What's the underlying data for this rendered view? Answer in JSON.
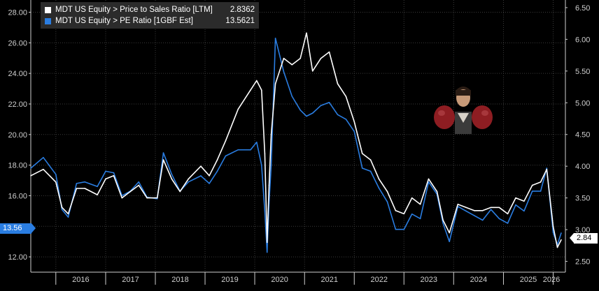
{
  "legend": {
    "items": [
      {
        "label": "MDT US Equity > Price to Sales Ratio [LTM]",
        "value": "2.8362",
        "color": "#ffffff"
      },
      {
        "label": "MDT US Equity > PE Ratio [1GBF Est]",
        "value": "13.5621",
        "color": "#2a7de1"
      }
    ]
  },
  "tags": {
    "left_value": "13.56",
    "right_value": "2.84"
  },
  "colors": {
    "background": "#000000",
    "grid": "#3a3a3a",
    "axis": "#cfcfcf",
    "pe_series": "#2a7de1",
    "ps_series": "#ffffff"
  },
  "chart_data": {
    "type": "line",
    "x_type": "date",
    "xlim": [
      "2015-07-01",
      "2026-04-01"
    ],
    "x_ticks": [
      "2016",
      "2017",
      "2018",
      "2019",
      "2020",
      "2021",
      "2022",
      "2023",
      "2024",
      "2025",
      "2026"
    ],
    "left_axis": {
      "series": "MDT US Equity > PE Ratio [1GBF Est]",
      "ylim": [
        11,
        28.8
      ],
      "ticks": [
        "12.00",
        "14.00",
        "16.00",
        "18.00",
        "20.00",
        "22.00",
        "24.00",
        "26.00",
        "28.00"
      ]
    },
    "right_axis": {
      "series": "MDT US Equity > Price to Sales Ratio [LTM]",
      "ylim": [
        2.33,
        6.62
      ],
      "ticks": [
        "2.50",
        "3.00",
        "3.50",
        "4.00",
        "4.50",
        "5.00",
        "5.50",
        "6.00",
        "6.50"
      ]
    },
    "grid": true,
    "legend_position": "top-left",
    "series": [
      {
        "name": "MDT US Equity > PE Ratio [1GBF Est]",
        "axis": "left",
        "color": "#2a7de1",
        "x": [
          "2015-07-01",
          "2015-10-01",
          "2016-01-01",
          "2016-02-15",
          "2016-04-01",
          "2016-06-01",
          "2016-08-01",
          "2016-11-01",
          "2017-01-01",
          "2017-03-01",
          "2017-05-01",
          "2017-07-01",
          "2017-09-01",
          "2017-11-01",
          "2018-01-15",
          "2018-03-01",
          "2018-05-01",
          "2018-07-01",
          "2018-09-01",
          "2018-12-01",
          "2019-02-01",
          "2019-04-01",
          "2019-06-01",
          "2019-09-01",
          "2019-12-01",
          "2020-01-15",
          "2020-02-20",
          "2020-03-15",
          "2020-04-01",
          "2020-04-15",
          "2020-05-01",
          "2020-06-01",
          "2020-08-01",
          "2020-10-01",
          "2020-12-01",
          "2021-01-15",
          "2021-03-01",
          "2021-05-01",
          "2021-07-01",
          "2021-09-01",
          "2021-11-01",
          "2022-01-01",
          "2022-03-01",
          "2022-05-01",
          "2022-07-01",
          "2022-09-01",
          "2022-11-01",
          "2023-01-01",
          "2023-03-01",
          "2023-05-01",
          "2023-07-01",
          "2023-09-01",
          "2023-10-15",
          "2023-12-01",
          "2024-02-01",
          "2024-04-01",
          "2024-06-01",
          "2024-08-01",
          "2024-10-01",
          "2024-12-01",
          "2025-02-01",
          "2025-04-01",
          "2025-06-01",
          "2025-08-01",
          "2025-10-01",
          "2025-11-15",
          "2026-01-01",
          "2026-02-01",
          "2026-03-01"
        ],
        "values": [
          17.8,
          18.5,
          17.4,
          15.1,
          14.6,
          16.8,
          16.9,
          16.6,
          17.6,
          17.5,
          16.0,
          16.3,
          16.9,
          15.9,
          15.8,
          18.8,
          17.4,
          16.3,
          16.9,
          17.3,
          16.8,
          17.6,
          18.6,
          19.0,
          19.0,
          19.5,
          18.0,
          15.0,
          12.3,
          15.5,
          18.0,
          26.3,
          24.1,
          22.5,
          21.6,
          21.2,
          21.4,
          21.9,
          22.1,
          21.3,
          21.0,
          20.2,
          17.8,
          17.6,
          16.5,
          15.6,
          13.8,
          13.8,
          14.8,
          14.5,
          16.9,
          16.1,
          14.2,
          13.0,
          15.3,
          15.0,
          14.7,
          14.4,
          15.1,
          14.5,
          14.2,
          15.4,
          15.0,
          16.3,
          16.3,
          17.8,
          13.6,
          12.8,
          13.56
        ]
      },
      {
        "name": "MDT US Equity > Price to Sales Ratio [LTM]",
        "axis": "right",
        "color": "#ffffff",
        "x": [
          "2015-07-01",
          "2015-10-01",
          "2016-01-01",
          "2016-02-15",
          "2016-04-01",
          "2016-06-01",
          "2016-08-01",
          "2016-11-01",
          "2017-01-01",
          "2017-03-01",
          "2017-05-01",
          "2017-07-01",
          "2017-09-01",
          "2017-11-01",
          "2018-01-15",
          "2018-03-01",
          "2018-05-01",
          "2018-07-01",
          "2018-09-01",
          "2018-12-01",
          "2019-02-01",
          "2019-04-01",
          "2019-06-01",
          "2019-09-01",
          "2019-12-01",
          "2020-01-15",
          "2020-02-20",
          "2020-03-15",
          "2020-04-01",
          "2020-04-15",
          "2020-05-01",
          "2020-06-01",
          "2020-08-01",
          "2020-10-01",
          "2020-12-01",
          "2021-01-15",
          "2021-03-01",
          "2021-05-01",
          "2021-07-01",
          "2021-09-01",
          "2021-11-01",
          "2022-01-01",
          "2022-03-01",
          "2022-05-01",
          "2022-07-01",
          "2022-09-01",
          "2022-11-01",
          "2023-01-01",
          "2023-03-01",
          "2023-05-01",
          "2023-07-01",
          "2023-09-01",
          "2023-10-15",
          "2023-12-01",
          "2024-02-01",
          "2024-04-01",
          "2024-06-01",
          "2024-08-01",
          "2024-10-01",
          "2024-12-01",
          "2025-02-01",
          "2025-04-01",
          "2025-06-01",
          "2025-08-01",
          "2025-10-01",
          "2025-11-15",
          "2026-01-01",
          "2026-02-01",
          "2026-03-01"
        ],
        "values": [
          3.85,
          3.95,
          3.75,
          3.35,
          3.25,
          3.65,
          3.65,
          3.55,
          3.8,
          3.85,
          3.5,
          3.6,
          3.7,
          3.5,
          3.5,
          4.1,
          3.8,
          3.6,
          3.8,
          4.0,
          3.85,
          4.1,
          4.4,
          4.9,
          5.2,
          5.35,
          5.2,
          4.2,
          2.8,
          3.7,
          4.5,
          5.3,
          5.7,
          5.6,
          5.7,
          6.1,
          5.5,
          5.7,
          5.8,
          5.3,
          5.1,
          4.7,
          4.2,
          4.1,
          3.8,
          3.6,
          3.3,
          3.25,
          3.5,
          3.4,
          3.8,
          3.6,
          3.15,
          2.95,
          3.4,
          3.35,
          3.3,
          3.3,
          3.35,
          3.35,
          3.25,
          3.5,
          3.45,
          3.7,
          3.75,
          3.95,
          3.05,
          2.72,
          2.84
        ]
      }
    ]
  }
}
